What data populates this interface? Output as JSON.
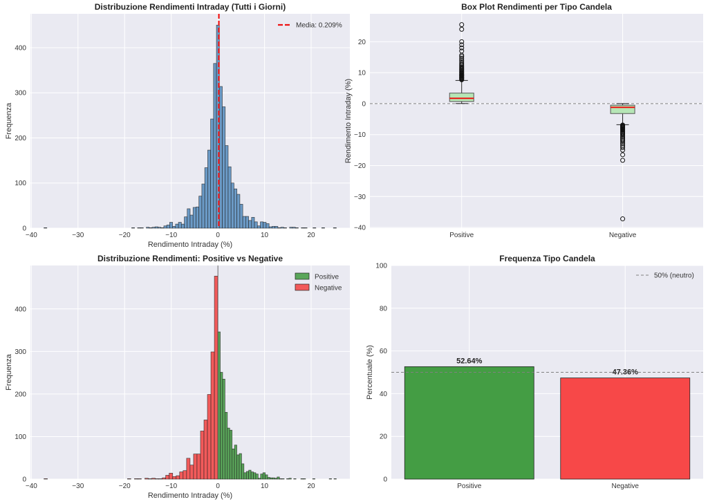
{
  "colors": {
    "background": "#eaeaf2",
    "grid": "#ffffff",
    "hist_all": "#6b9ac6",
    "positive_hist": "#5aa65a",
    "negative_hist": "#f25a5a",
    "positive_bar": "#449d44",
    "negative_bar": "#f74848",
    "mean_line": "#ee1111",
    "median_line": "#ee1111",
    "box_fill": "#b6e6b6",
    "reference_line": "#808080",
    "edge": "#222222"
  },
  "chart_data": [
    {
      "type": "histogram",
      "title": "Distribuzione Rendimenti Intraday (Tutti i Giorni)",
      "xlabel": "Rendimento Intraday (%)",
      "ylabel": "Frequenza",
      "xlim": [
        -40.2,
        28.3
      ],
      "ylim": [
        0,
        475
      ],
      "xticks": [
        -40,
        -30,
        -20,
        -10,
        0,
        10,
        20
      ],
      "xtick_labels": [
        "−40",
        "−30",
        "−20",
        "−10",
        "0",
        "10",
        "20"
      ],
      "yticks": [
        0,
        100,
        200,
        300,
        400
      ],
      "ytick_labels": [
        "0",
        "100",
        "200",
        "300",
        "400"
      ],
      "grid": true,
      "legend_position": "top-right",
      "bin_start": -37.3,
      "bin_width": 0.627,
      "counts": [
        1,
        0,
        0,
        0,
        0,
        0,
        0,
        0,
        0,
        0,
        0,
        0,
        0,
        0,
        0,
        0,
        0,
        0,
        0,
        0,
        0,
        0,
        0,
        0,
        0,
        0,
        0,
        0,
        0,
        0,
        1,
        0,
        1,
        1,
        0,
        2,
        1,
        2,
        3,
        2,
        1,
        5,
        7,
        13,
        4,
        9,
        13,
        9,
        25,
        43,
        29,
        46,
        47,
        71,
        98,
        134,
        173,
        242,
        365,
        450,
        314,
        269,
        183,
        136,
        100,
        87,
        75,
        53,
        26,
        26,
        17,
        24,
        14,
        5,
        14,
        13,
        10,
        3,
        4,
        4,
        1,
        2,
        1,
        0,
        2,
        2,
        1,
        0,
        1,
        1,
        0,
        0,
        1,
        0,
        0,
        1,
        0,
        0,
        0,
        1
      ],
      "mean_line": {
        "value": 0.209,
        "label": "Media: 0.209%"
      }
    },
    {
      "type": "box",
      "title": "Box Plot Rendimenti per Tipo Candela",
      "xlabel": "",
      "ylabel": "Rendimento Intraday (%)",
      "ylim": [
        -40.2,
        29
      ],
      "yticks": [
        -40,
        -30,
        -20,
        -10,
        0,
        10,
        20
      ],
      "ytick_labels": [
        "−40",
        "−30",
        "−20",
        "−10",
        "0",
        "10",
        "20"
      ],
      "grid": true,
      "reference_line": 0,
      "categories": [
        "Positive",
        "Negative"
      ],
      "boxes": [
        {
          "whisker_low": 0.05,
          "q1": 0.7,
          "median": 1.7,
          "q3": 3.4,
          "whisker_high": 7.5,
          "outliers": [
            7.7,
            7.9,
            8.1,
            8.3,
            8.5,
            8.7,
            8.9,
            9.1,
            9.3,
            9.5,
            9.8,
            10.0,
            10.3,
            10.6,
            10.9,
            11.2,
            11.5,
            11.8,
            12.2,
            12.6,
            13.0,
            13.5,
            14.0,
            14.6,
            15.2,
            15.6,
            17.0,
            18.0,
            19.0,
            20.0,
            24.0,
            25.5
          ]
        },
        {
          "whisker_low": -6.8,
          "q1": -3.2,
          "median": -1.2,
          "q3": -0.5,
          "whisker_high": 0.0,
          "outliers": [
            -6.9,
            -7.1,
            -7.3,
            -7.5,
            -7.7,
            -7.9,
            -8.1,
            -8.3,
            -8.5,
            -8.8,
            -9.1,
            -9.4,
            -9.7,
            -10.0,
            -10.4,
            -10.8,
            -11.2,
            -11.6,
            -12.0,
            -12.5,
            -13.0,
            -13.6,
            -14.2,
            -15.0,
            -16.5,
            -18.3,
            -37.2
          ]
        }
      ]
    },
    {
      "type": "histogram",
      "title": "Distribuzione Rendimenti: Positive vs Negative",
      "xlabel": "Rendimento Intraday (%)",
      "ylabel": "Frequenza",
      "xlim": [
        -40.2,
        28.3
      ],
      "ylim": [
        0,
        502
      ],
      "xticks": [
        -40,
        -30,
        -20,
        -10,
        0,
        10,
        20
      ],
      "xtick_labels": [
        "−40",
        "−30",
        "−20",
        "−10",
        "0",
        "10",
        "20"
      ],
      "yticks": [
        0,
        100,
        200,
        300,
        400
      ],
      "ytick_labels": [
        "0",
        "100",
        "200",
        "300",
        "400"
      ],
      "grid": true,
      "legend_position": "top-right",
      "vertical_line": 0,
      "series": [
        {
          "name": "Positive",
          "bin_start": 0,
          "bin_width": 0.508,
          "counts": [
            346,
            251,
            235,
            157,
            120,
            115,
            71,
            80,
            57,
            60,
            36,
            15,
            18,
            21,
            17,
            15,
            12,
            2,
            12,
            15,
            10,
            4,
            3,
            3,
            2,
            5,
            1,
            1,
            0,
            1,
            2,
            0,
            1,
            0,
            0,
            1,
            1,
            0,
            0,
            0,
            1,
            0,
            0,
            0,
            0,
            0,
            0,
            1,
            0,
            1
          ]
        },
        {
          "name": "Negative",
          "bin_start": -37.3,
          "bin_width": 0.746,
          "counts": [
            1,
            0,
            0,
            0,
            0,
            0,
            0,
            0,
            0,
            0,
            0,
            0,
            0,
            0,
            0,
            0,
            0,
            0,
            0,
            0,
            0,
            0,
            0,
            0,
            1,
            0,
            1,
            1,
            0,
            2,
            1,
            2,
            1,
            1,
            3,
            9,
            14,
            6,
            8,
            17,
            20,
            49,
            33,
            59,
            59,
            113,
            139,
            199,
            299,
            477
          ]
        }
      ]
    },
    {
      "type": "bar",
      "title": "Frequenza Tipo Candela",
      "xlabel": "",
      "ylabel": "Percentuale (%)",
      "ylim": [
        0,
        100
      ],
      "yticks": [
        0,
        20,
        40,
        60,
        80,
        100
      ],
      "ytick_labels": [
        "0",
        "20",
        "40",
        "60",
        "80",
        "100"
      ],
      "grid": true,
      "legend_position": "top-right",
      "categories": [
        "Positive",
        "Negative"
      ],
      "values": [
        52.64,
        47.36
      ],
      "data_labels": [
        "52.64%",
        "47.36%"
      ],
      "reference_line": {
        "value": 50,
        "label": "50% (neutro)"
      }
    }
  ]
}
